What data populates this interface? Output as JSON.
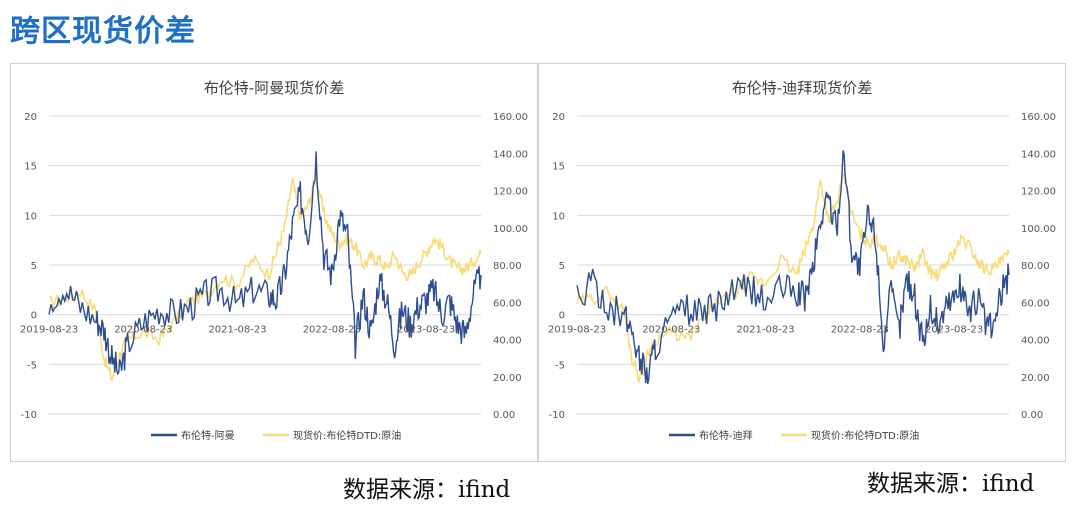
{
  "page": {
    "title": "跨区现货价差"
  },
  "chart_data": [
    {
      "type": "line",
      "title": "布伦特-阿曼现货价差",
      "x_ticks": [
        "2019-08-23",
        "2020-08-23",
        "2021-08-23",
        "2022-08-23",
        "2023-08-23"
      ],
      "y_left": {
        "min": -10,
        "max": 20,
        "step": 5,
        "ticks": [
          "20",
          "15",
          "10",
          "5",
          "0",
          "-5",
          "-10"
        ]
      },
      "y_right": {
        "min": 0,
        "max": 160,
        "step": 20,
        "ticks": [
          "160.00",
          "140.00",
          "120.00",
          "100.00",
          "80.00",
          "60.00",
          "40.00",
          "20.00",
          "0.00"
        ]
      },
      "grid": true,
      "legend_position": "bottom",
      "colors": {
        "spread": "#2e4d91",
        "price": "#f7dc7a"
      },
      "series": [
        {
          "name": "布伦特-阿曼",
          "axis": "left",
          "x": [
            "2019-08",
            "2019-10",
            "2019-12",
            "2020-02",
            "2020-03",
            "2020-04",
            "2020-05",
            "2020-06",
            "2020-08",
            "2020-10",
            "2020-12",
            "2021-02",
            "2021-04",
            "2021-06",
            "2021-08",
            "2021-10",
            "2021-12",
            "2022-01",
            "2022-02",
            "2022-03",
            "2022-04",
            "2022-05",
            "2022-06",
            "2022-07",
            "2022-08",
            "2022-09",
            "2022-10",
            "2022-11",
            "2022-12",
            "2023-01",
            "2023-02",
            "2023-03",
            "2023-04",
            "2023-05",
            "2023-06",
            "2023-07",
            "2023-08",
            "2023-09",
            "2023-10",
            "2023-11",
            "2023-12",
            "2024-01",
            "2024-02",
            "2024-03"
          ],
          "y": [
            1.5,
            2.8,
            0.8,
            -0.5,
            -1.5,
            -4.5,
            -6,
            -3,
            -0.8,
            0.5,
            0,
            0.8,
            2,
            2.5,
            1,
            2.5,
            2,
            1.5,
            4,
            9,
            12,
            8,
            16,
            6,
            4,
            10,
            8,
            -3,
            2,
            -2,
            3.5,
            1.5,
            -3,
            0.5,
            -1,
            0.8,
            1.5,
            2.5,
            0,
            1.5,
            -1,
            -2,
            2,
            4
          ]
        },
        {
          "name": "现货价:布伦特DTD:原油",
          "axis": "right",
          "x": [
            "2019-08",
            "2019-10",
            "2019-12",
            "2020-02",
            "2020-03",
            "2020-04",
            "2020-05",
            "2020-06",
            "2020-08",
            "2020-10",
            "2020-12",
            "2021-02",
            "2021-04",
            "2021-06",
            "2021-08",
            "2021-10",
            "2021-12",
            "2022-01",
            "2022-02",
            "2022-03",
            "2022-04",
            "2022-05",
            "2022-06",
            "2022-07",
            "2022-08",
            "2022-09",
            "2022-10",
            "2022-11",
            "2022-12",
            "2023-01",
            "2023-02",
            "2023-03",
            "2023-04",
            "2023-05",
            "2023-06",
            "2023-07",
            "2023-08",
            "2023-09",
            "2023-10",
            "2023-11",
            "2023-12",
            "2024-01",
            "2024-02",
            "2024-03"
          ],
          "y": [
            60,
            62,
            66,
            55,
            30,
            19,
            32,
            40,
            44,
            40,
            50,
            61,
            64,
            73,
            70,
            83,
            75,
            88,
            100,
            125,
            105,
            112,
            128,
            107,
            97,
            92,
            94,
            90,
            80,
            84,
            83,
            78,
            86,
            76,
            74,
            81,
            87,
            94,
            90,
            82,
            78,
            78,
            82,
            86
          ]
        }
      ]
    },
    {
      "type": "line",
      "title": "布伦特-迪拜现货价差",
      "x_ticks": [
        "2019-08-23",
        "2020-08-23",
        "2021-08-23",
        "2022-08-23",
        "2023-08-23"
      ],
      "y_left": {
        "min": -10,
        "max": 20,
        "step": 5,
        "ticks": [
          "20",
          "15",
          "10",
          "5",
          "0",
          "-5",
          "-10"
        ]
      },
      "y_right": {
        "min": 0,
        "max": 160,
        "step": 20,
        "ticks": [
          "160.00",
          "140.00",
          "120.00",
          "100.00",
          "80.00",
          "60.00",
          "40.00",
          "20.00",
          "0.00"
        ]
      },
      "grid": true,
      "legend_position": "bottom",
      "colors": {
        "spread": "#2e4d91",
        "price": "#f7dc7a"
      },
      "series": [
        {
          "name": "布伦特-迪拜",
          "axis": "left",
          "x": [
            "2019-08",
            "2019-10",
            "2019-12",
            "2020-02",
            "2020-03",
            "2020-04",
            "2020-05",
            "2020-06",
            "2020-08",
            "2020-10",
            "2020-12",
            "2021-02",
            "2021-04",
            "2021-06",
            "2021-08",
            "2021-10",
            "2021-12",
            "2022-01",
            "2022-02",
            "2022-03",
            "2022-04",
            "2022-05",
            "2022-06",
            "2022-07",
            "2022-08",
            "2022-09",
            "2022-10",
            "2022-11",
            "2022-12",
            "2023-01",
            "2023-02",
            "2023-03",
            "2023-04",
            "2023-05",
            "2023-06",
            "2023-07",
            "2023-08",
            "2023-09",
            "2023-10",
            "2023-11",
            "2023-12",
            "2024-01",
            "2024-02",
            "2024-03"
          ],
          "y": [
            1.8,
            3,
            1,
            -0.3,
            -1.5,
            -4.5,
            -6,
            -3,
            -0.5,
            0.5,
            0,
            1,
            2.2,
            2.8,
            1.2,
            2.8,
            2.2,
            1.8,
            4.5,
            9.5,
            12,
            8.5,
            16.5,
            6.5,
            4.5,
            10,
            8,
            -2.8,
            2.2,
            -1.5,
            3.8,
            1.8,
            -3,
            0.8,
            -1,
            1,
            1.8,
            2.8,
            0.2,
            1.8,
            -0.8,
            -1.5,
            2.2,
            4
          ]
        },
        {
          "name": "现货价:布伦特DTD:原油",
          "axis": "right",
          "x": [
            "2019-08",
            "2019-10",
            "2019-12",
            "2020-02",
            "2020-03",
            "2020-04",
            "2020-05",
            "2020-06",
            "2020-08",
            "2020-10",
            "2020-12",
            "2021-02",
            "2021-04",
            "2021-06",
            "2021-08",
            "2021-10",
            "2021-12",
            "2022-01",
            "2022-02",
            "2022-03",
            "2022-04",
            "2022-05",
            "2022-06",
            "2022-07",
            "2022-08",
            "2022-09",
            "2022-10",
            "2022-11",
            "2022-12",
            "2023-01",
            "2023-02",
            "2023-03",
            "2023-04",
            "2023-05",
            "2023-06",
            "2023-07",
            "2023-08",
            "2023-09",
            "2023-10",
            "2023-11",
            "2023-12",
            "2024-01",
            "2024-02",
            "2024-03"
          ],
          "y": [
            60,
            62,
            66,
            55,
            30,
            19,
            32,
            40,
            44,
            40,
            50,
            61,
            64,
            73,
            70,
            83,
            75,
            88,
            100,
            125,
            105,
            112,
            128,
            107,
            97,
            92,
            94,
            90,
            80,
            84,
            83,
            78,
            86,
            76,
            74,
            81,
            87,
            94,
            90,
            82,
            78,
            78,
            82,
            86
          ]
        }
      ]
    }
  ],
  "sources": [
    "数据来源：ifind",
    "数据来源：ifind"
  ]
}
